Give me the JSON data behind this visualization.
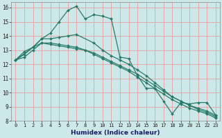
{
  "xlabel": "Humidex (Indice chaleur)",
  "bg_color": "#cce8e8",
  "grid_color": "#e8a0a0",
  "line_color": "#2a7a6a",
  "xlim": [
    -0.5,
    23.5
  ],
  "ylim": [
    8,
    16.4
  ],
  "yticks": [
    8,
    9,
    10,
    11,
    12,
    13,
    14,
    15,
    16
  ],
  "xticks": [
    0,
    1,
    2,
    3,
    4,
    5,
    6,
    7,
    8,
    9,
    10,
    11,
    12,
    13,
    14,
    15,
    16,
    17,
    18,
    19,
    20,
    21,
    22,
    23
  ],
  "series": [
    {
      "x": [
        0,
        1,
        2,
        3,
        4,
        5,
        6,
        7,
        8,
        9,
        10,
        11,
        12,
        13,
        14,
        15,
        16,
        17,
        18,
        19,
        20,
        21,
        22,
        23
      ],
      "y": [
        12.3,
        12.9,
        13.2,
        13.8,
        14.2,
        15.0,
        15.8,
        16.1,
        15.2,
        15.5,
        15.4,
        15.2,
        12.5,
        12.4,
        11.2,
        10.3,
        10.3,
        9.4,
        8.5,
        9.3,
        9.2,
        9.3,
        9.3,
        8.4
      ]
    },
    {
      "x": [
        0,
        2,
        3,
        4,
        5,
        6,
        7,
        9,
        10,
        11,
        12,
        13,
        14,
        15,
        16,
        17,
        18,
        19,
        20,
        21,
        22,
        23
      ],
      "y": [
        12.3,
        13.2,
        13.8,
        13.8,
        13.9,
        14.0,
        14.1,
        13.5,
        13.0,
        12.6,
        12.3,
        12.0,
        11.6,
        11.2,
        10.7,
        10.2,
        9.7,
        9.4,
        9.1,
        8.9,
        8.7,
        8.4
      ]
    },
    {
      "x": [
        0,
        1,
        2,
        3,
        4,
        5,
        6,
        7,
        8,
        9,
        10,
        11,
        12,
        13,
        14,
        15,
        16,
        17,
        18,
        19,
        20,
        21,
        22,
        23
      ],
      "y": [
        12.3,
        12.7,
        13.2,
        13.5,
        13.5,
        13.4,
        13.3,
        13.2,
        13.0,
        12.7,
        12.4,
        12.1,
        11.8,
        11.5,
        11.1,
        10.7,
        10.3,
        9.9,
        9.5,
        9.2,
        8.9,
        8.7,
        8.5,
        8.2
      ]
    },
    {
      "x": [
        0,
        1,
        2,
        3,
        4,
        5,
        6,
        7,
        8,
        9,
        10,
        11,
        12,
        13,
        14,
        15,
        16,
        17,
        18,
        19,
        20,
        21,
        22,
        23
      ],
      "y": [
        12.3,
        12.5,
        13.0,
        13.5,
        13.4,
        13.3,
        13.2,
        13.1,
        13.0,
        12.8,
        12.5,
        12.2,
        11.9,
        11.6,
        11.3,
        10.9,
        10.5,
        10.1,
        9.7,
        9.4,
        9.1,
        8.8,
        8.6,
        8.3
      ]
    }
  ]
}
